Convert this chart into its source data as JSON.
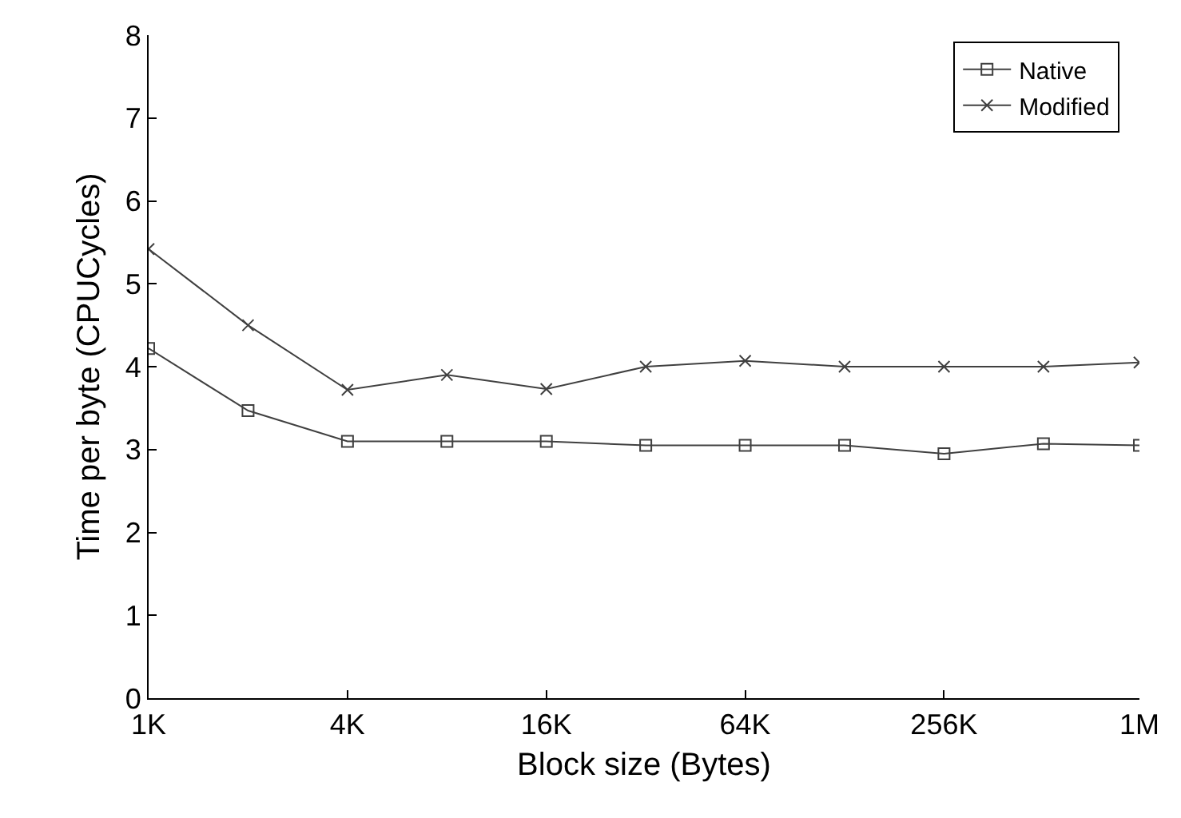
{
  "chart_data": {
    "type": "line",
    "xlabel": "Block size (Bytes)",
    "ylabel": "Time per byte (CPUCycles)",
    "x": [
      1000,
      2000,
      4000,
      8000,
      16000,
      32000,
      64000,
      128000,
      256000,
      512000,
      1000000
    ],
    "log": "x",
    "xlim": [
      1000,
      1000000
    ],
    "xticks": [
      {
        "value": 1000,
        "label": "1K"
      },
      {
        "value": 4000,
        "label": "4K"
      },
      {
        "value": 16000,
        "label": "16K"
      },
      {
        "value": 64000,
        "label": "64K"
      },
      {
        "value": 256000,
        "label": "256K"
      },
      {
        "value": 1000000,
        "label": "1M"
      }
    ],
    "ylim": [
      0,
      8
    ],
    "yticks": [
      0,
      1,
      2,
      3,
      4,
      5,
      6,
      7,
      8
    ],
    "grid": false,
    "legend": "top right",
    "line_style": "solid",
    "series": [
      {
        "name": "Native",
        "color": "#404040",
        "marker": "square",
        "values": [
          4.22,
          3.47,
          3.1,
          3.1,
          3.1,
          3.05,
          3.05,
          3.05,
          2.95,
          3.07,
          3.05
        ]
      },
      {
        "name": "Modified",
        "color": "#404040",
        "marker": "cross",
        "values": [
          5.42,
          4.5,
          3.72,
          3.9,
          3.73,
          4.0,
          4.07,
          4.0,
          4.0,
          4.0,
          4.05
        ]
      }
    ]
  }
}
